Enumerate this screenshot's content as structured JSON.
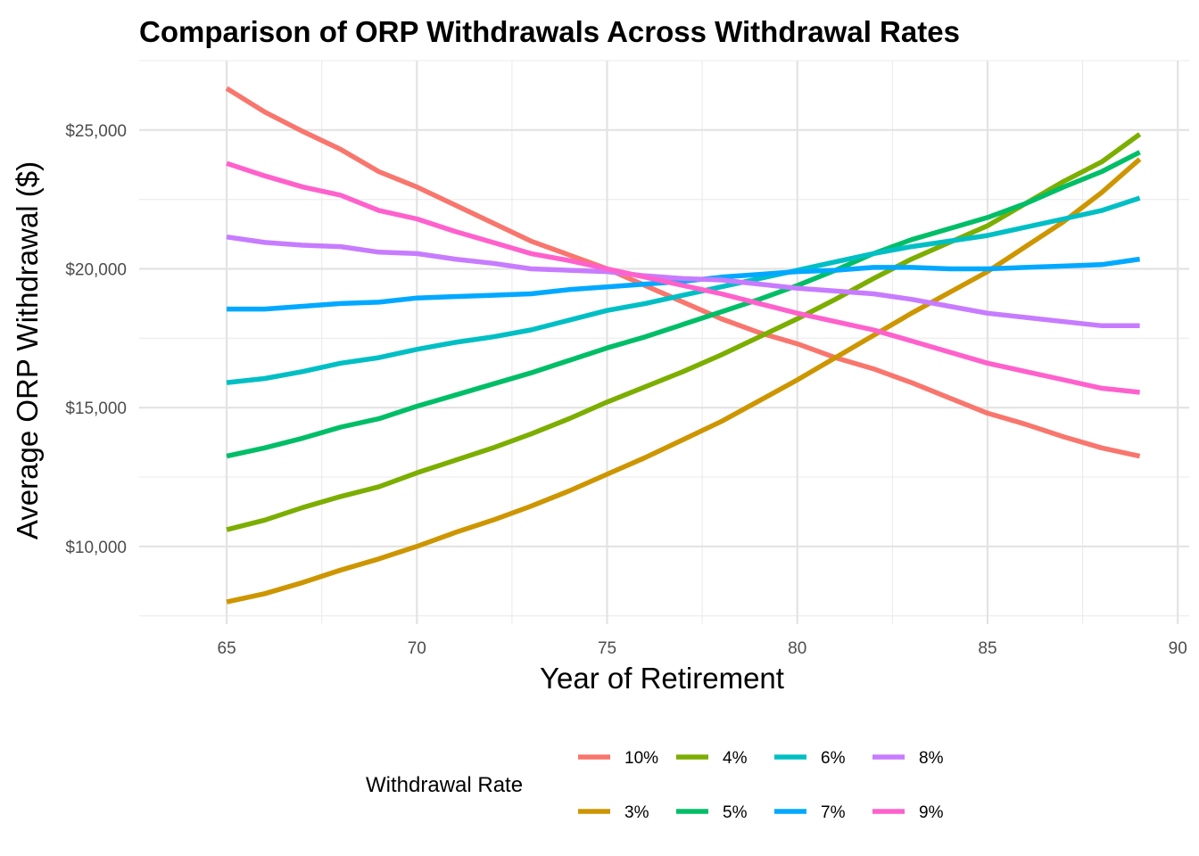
{
  "chart_data": {
    "type": "line",
    "title": "Comparison of ORP Withdrawals Across Withdrawal Rates",
    "xlabel": "Year of Retirement",
    "ylabel": "Average ORP Withdrawal ($)",
    "xlim": [
      62.7,
      90.3
    ],
    "ylim": [
      7200,
      27500
    ],
    "x_ticks": [
      65,
      70,
      75,
      80,
      85,
      90
    ],
    "x_tick_labels": [
      "65",
      "70",
      "75",
      "80",
      "85",
      "90"
    ],
    "y_ticks": [
      10000,
      15000,
      20000,
      25000
    ],
    "y_tick_labels": [
      "$10,000",
      "$15,000",
      "$20,000",
      "$25,000"
    ],
    "grid": true,
    "legend": {
      "title": "Withdrawal Rate",
      "position": "bottom",
      "order": [
        "10%",
        "3%",
        "4%",
        "5%",
        "6%",
        "7%",
        "8%",
        "9%"
      ]
    },
    "x": [
      65,
      66,
      67,
      68,
      69,
      70,
      71,
      72,
      73,
      74,
      75,
      76,
      77,
      78,
      79,
      80,
      81,
      82,
      83,
      84,
      85,
      86,
      87,
      88,
      89
    ],
    "series": [
      {
        "name": "10%",
        "color": "#F8766D",
        "values": [
          26500,
          25650,
          24950,
          24300,
          23500,
          22950,
          22300,
          21650,
          21000,
          20500,
          20000,
          19400,
          18800,
          18200,
          17700,
          17300,
          16800,
          16400,
          15900,
          15350,
          14800,
          14400,
          13950,
          13550,
          13250
        ]
      },
      {
        "name": "3%",
        "color": "#CD9600",
        "values": [
          8000,
          8300,
          8700,
          9150,
          9550,
          10000,
          10500,
          10950,
          11450,
          12000,
          12600,
          13200,
          13850,
          14500,
          15250,
          16000,
          16800,
          17600,
          18400,
          19150,
          19900,
          20800,
          21700,
          22750,
          23950
        ]
      },
      {
        "name": "4%",
        "color": "#7CAE00",
        "values": [
          10600,
          10950,
          11400,
          11800,
          12150,
          12650,
          13100,
          13550,
          14050,
          14600,
          15200,
          15750,
          16300,
          16900,
          17550,
          18200,
          18900,
          19650,
          20350,
          20950,
          21550,
          22350,
          23150,
          23850,
          24850
        ]
      },
      {
        "name": "5%",
        "color": "#00BE67",
        "values": [
          13250,
          13550,
          13900,
          14300,
          14600,
          15050,
          15450,
          15850,
          16250,
          16700,
          17150,
          17550,
          18000,
          18450,
          18900,
          19400,
          19950,
          20550,
          21050,
          21450,
          21850,
          22350,
          22950,
          23500,
          24200
        ]
      },
      {
        "name": "6%",
        "color": "#00BFC4",
        "values": [
          15900,
          16050,
          16300,
          16600,
          16800,
          17100,
          17350,
          17550,
          17800,
          18150,
          18500,
          18750,
          19050,
          19350,
          19650,
          19950,
          20250,
          20550,
          20800,
          21000,
          21200,
          21500,
          21800,
          22100,
          22550
        ]
      },
      {
        "name": "7%",
        "color": "#00A9FF",
        "values": [
          18550,
          18550,
          18650,
          18750,
          18800,
          18950,
          19000,
          19050,
          19100,
          19250,
          19350,
          19450,
          19550,
          19700,
          19800,
          19900,
          19950,
          20050,
          20050,
          20000,
          20000,
          20050,
          20100,
          20150,
          20350
        ]
      },
      {
        "name": "8%",
        "color": "#C77CFF",
        "values": [
          21150,
          20950,
          20850,
          20800,
          20600,
          20550,
          20350,
          20200,
          20000,
          19950,
          19900,
          19750,
          19650,
          19600,
          19450,
          19300,
          19200,
          19100,
          18900,
          18650,
          18400,
          18250,
          18100,
          17950,
          17950
        ]
      },
      {
        "name": "9%",
        "color": "#FF61CC",
        "values": [
          23800,
          23350,
          22950,
          22650,
          22100,
          21800,
          21350,
          20950,
          20550,
          20300,
          20000,
          19700,
          19400,
          19100,
          18750,
          18400,
          18100,
          17800,
          17400,
          17000,
          16600,
          16300,
          16000,
          15700,
          15550
        ]
      }
    ]
  }
}
